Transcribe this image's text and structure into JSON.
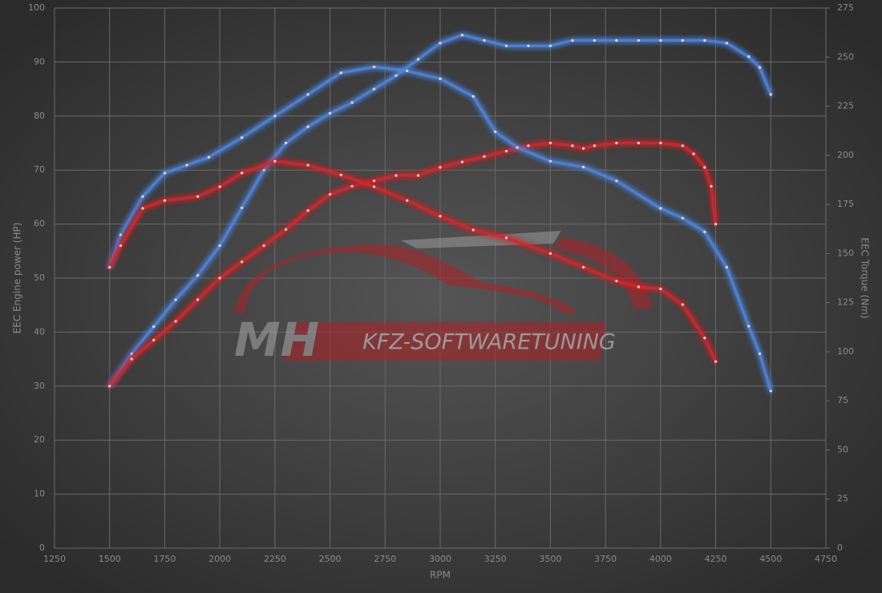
{
  "chart_data": {
    "type": "line",
    "watermark": [
      "MH",
      "KFZ-SOFTWARETUNING"
    ],
    "x_label": "RPM",
    "y_label": "EEC Engine power (HP)",
    "y2_label": "EEC Torque (Nm)",
    "xlim": [
      1250,
      4750
    ],
    "xticks": [
      1250,
      1500,
      1750,
      2000,
      2250,
      2500,
      2750,
      3000,
      3250,
      3500,
      3750,
      4000,
      4250,
      4500,
      4750
    ],
    "ylim": [
      0,
      100
    ],
    "yticks": [
      0,
      10,
      20,
      30,
      40,
      50,
      60,
      70,
      80,
      90,
      100
    ],
    "y2lim": [
      0,
      275
    ],
    "y2ticks": [
      0,
      25,
      50,
      75,
      100,
      125,
      150,
      175,
      200,
      225,
      250,
      275
    ],
    "grid": true,
    "series": [
      {
        "color": "#4d86e0",
        "x": [
          1500,
          1600,
          1700,
          1800,
          1900,
          2000,
          2100,
          2200,
          2300,
          2400,
          2500,
          2600,
          2700,
          2800,
          2900,
          3000,
          3100,
          3200,
          3300,
          3400,
          3500,
          3600,
          3700,
          3800,
          3900,
          4000,
          4100,
          4200,
          4300,
          4400,
          4450,
          4500
        ],
        "values": [
          30,
          36,
          41,
          46,
          50.5,
          56,
          63,
          70,
          75,
          78,
          80.5,
          82.5,
          85,
          87.5,
          90.5,
          93.5,
          95,
          94,
          93,
          93,
          93,
          94,
          94,
          94,
          94,
          94,
          94,
          94,
          93.5,
          91,
          89,
          84
        ]
      },
      {
        "color": "#d4262b",
        "x": [
          1500,
          1600,
          1700,
          1800,
          1900,
          2000,
          2100,
          2200,
          2300,
          2400,
          2500,
          2600,
          2700,
          2800,
          2900,
          3000,
          3100,
          3200,
          3300,
          3400,
          3500,
          3600,
          3650,
          3700,
          3800,
          3900,
          4000,
          4100,
          4150,
          4200,
          4230,
          4250
        ],
        "values": [
          30,
          35,
          38.5,
          42,
          46,
          50,
          53,
          56,
          59,
          62.5,
          65.5,
          67,
          68,
          69,
          69,
          70.5,
          71.5,
          72.5,
          73.5,
          74.5,
          75,
          74.5,
          74,
          74.5,
          75,
          75,
          75,
          74.5,
          73,
          70.5,
          67,
          60
        ]
      },
      {
        "color": "#4d86e0",
        "axis": "y2",
        "x": [
          1500,
          1550,
          1650,
          1750,
          1850,
          1950,
          2100,
          2250,
          2400,
          2550,
          2700,
          2850,
          3000,
          3150,
          3250,
          3350,
          3500,
          3650,
          3800,
          4000,
          4100,
          4200,
          4300,
          4400,
          4450,
          4500
        ],
        "values": [
          143,
          159.5,
          179,
          191,
          195,
          199,
          209,
          220,
          231,
          242,
          245,
          243,
          239,
          230,
          212,
          204,
          197,
          194,
          187,
          173,
          168,
          161,
          143,
          113,
          99,
          80
        ]
      },
      {
        "color": "#d4262b",
        "axis": "y2",
        "x": [
          1500,
          1550,
          1650,
          1750,
          1900,
          2000,
          2100,
          2250,
          2400,
          2550,
          2700,
          2850,
          3000,
          3150,
          3300,
          3500,
          3650,
          3800,
          3900,
          4000,
          4100,
          4200,
          4250
        ],
        "values": [
          143,
          154,
          173,
          177,
          179,
          184,
          191,
          197,
          195,
          190,
          184,
          177,
          169,
          162,
          158,
          150,
          143,
          136,
          133,
          132,
          124,
          107,
          95
        ]
      }
    ]
  }
}
